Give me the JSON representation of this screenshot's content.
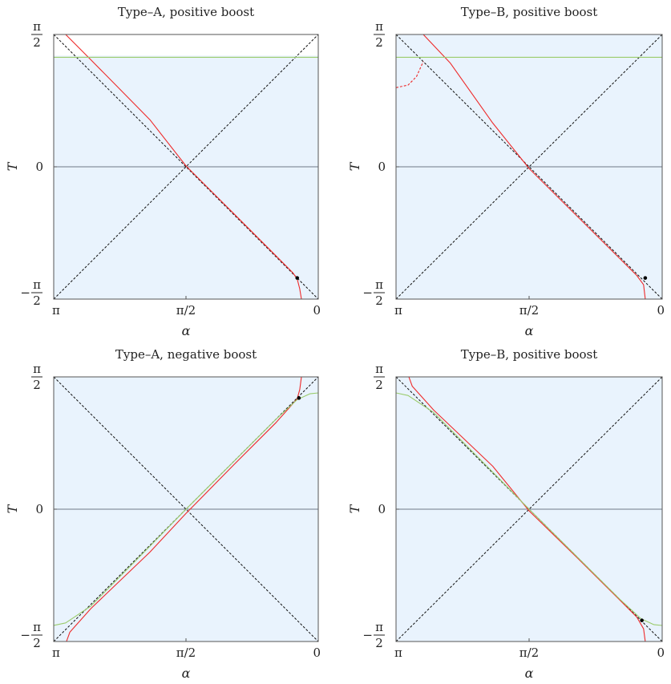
{
  "figure": {
    "colors": {
      "shade": "#e9f3fd",
      "frame": "#555555",
      "zero_line": "#6e7a88",
      "diagonal": "#111111",
      "red_curve": "#ee2a2a",
      "green_curve": "#9acb6a",
      "point": "#000000"
    }
  },
  "chart_data": [
    {
      "type": "line",
      "title": "Type–A, positive boost",
      "xlabel": "α",
      "ylabel": "T",
      "x_reversed": true,
      "xlim": [
        0,
        3.14159
      ],
      "ylim": [
        -1.5708,
        1.5708
      ],
      "x_ticks": [
        {
          "v": 3.14159,
          "label": "π"
        },
        {
          "v": 1.5708,
          "label": "π/2"
        },
        {
          "v": 0,
          "label": "0"
        }
      ],
      "y_ticks": [
        {
          "v": 1.5708,
          "num": "π",
          "den": "2",
          "sign": ""
        },
        {
          "v": 0,
          "label": "0"
        },
        {
          "v": -1.5708,
          "num": "π",
          "den": "2",
          "sign": "−"
        }
      ],
      "shade": {
        "ymin": -1.5708,
        "ymax": 1.32
      },
      "series": [
        {
          "kind": "red",
          "style": "solid",
          "points": [
            [
              3.0,
              1.5708
            ],
            [
              2.7,
              1.27
            ],
            [
              2.0,
              0.56
            ],
            [
              1.5708,
              0.01
            ],
            [
              1.0,
              -0.56
            ],
            [
              0.5,
              -1.06
            ],
            [
              0.3,
              -1.26
            ],
            [
              0.25,
              -1.33
            ],
            [
              0.22,
              -1.45
            ],
            [
              0.2,
              -1.5708
            ]
          ]
        },
        {
          "kind": "green",
          "style": "solid",
          "points": [
            [
              3.14159,
              1.3
            ],
            [
              0,
              1.3
            ]
          ]
        }
      ],
      "markers": [
        [
          0.25,
          -1.32
        ]
      ]
    },
    {
      "type": "line",
      "title": "Type–B, positive boost",
      "xlabel": "α",
      "ylabel": "T",
      "x_reversed": true,
      "xlim": [
        0,
        3.14159
      ],
      "ylim": [
        -1.5708,
        1.5708
      ],
      "x_ticks": [
        {
          "v": 3.14159,
          "label": "π"
        },
        {
          "v": 1.5708,
          "label": "π/2"
        },
        {
          "v": 0,
          "label": "0"
        }
      ],
      "y_ticks": [
        {
          "v": 1.5708,
          "num": "π",
          "den": "2",
          "sign": ""
        },
        {
          "v": 0,
          "label": "0"
        },
        {
          "v": -1.5708,
          "num": "π",
          "den": "2",
          "sign": "−"
        }
      ],
      "shade": {
        "ymin": -1.5708,
        "ymax": 1.5708
      },
      "series": [
        {
          "kind": "red",
          "style": "solid",
          "points": [
            [
              2.82,
              1.5708
            ],
            [
              2.5,
              1.23
            ],
            [
              2.0,
              0.52
            ],
            [
              1.5708,
              -0.02
            ],
            [
              1.0,
              -0.59
            ],
            [
              0.5,
              -1.09
            ],
            [
              0.3,
              -1.29
            ],
            [
              0.22,
              -1.4
            ],
            [
              0.2,
              -1.5708
            ]
          ]
        },
        {
          "kind": "red",
          "style": "dashed",
          "points": [
            [
              3.14159,
              0.94
            ],
            [
              3.0,
              0.97
            ],
            [
              2.9,
              1.07
            ],
            [
              2.82,
              1.25
            ]
          ]
        },
        {
          "kind": "green",
          "style": "solid",
          "points": [
            [
              3.14159,
              1.3
            ],
            [
              0,
              1.3
            ]
          ]
        }
      ],
      "markers": [
        [
          0.2,
          -1.32
        ]
      ]
    },
    {
      "type": "line",
      "title": "Type–A, negative boost",
      "xlabel": "α",
      "ylabel": "T",
      "x_reversed": true,
      "xlim": [
        0,
        3.14159
      ],
      "ylim": [
        -1.5708,
        1.5708
      ],
      "x_ticks": [
        {
          "v": 3.14159,
          "label": "π"
        },
        {
          "v": 1.5708,
          "label": "π/2"
        },
        {
          "v": 0,
          "label": "0"
        }
      ],
      "y_ticks": [
        {
          "v": 1.5708,
          "num": "π",
          "den": "2",
          "sign": ""
        },
        {
          "v": 0,
          "label": "0"
        },
        {
          "v": -1.5708,
          "num": "π",
          "den": "2",
          "sign": "−"
        }
      ],
      "shade": {
        "ymin": -1.5708,
        "ymax": 1.5708
      },
      "series": [
        {
          "kind": "red",
          "style": "solid",
          "points": [
            [
              2.99,
              -1.5708
            ],
            [
              2.95,
              -1.46
            ],
            [
              2.7,
              -1.18
            ],
            [
              2.0,
              -0.51
            ],
            [
              1.5708,
              -0.05
            ],
            [
              1.0,
              0.53
            ],
            [
              0.5,
              1.03
            ],
            [
              0.25,
              1.31
            ],
            [
              0.22,
              1.42
            ],
            [
              0.2,
              1.5708
            ]
          ]
        },
        {
          "kind": "green",
          "style": "solid",
          "points": [
            [
              3.14159,
              -1.38
            ],
            [
              3.0,
              -1.35
            ],
            [
              2.7,
              -1.15
            ],
            [
              2.0,
              -0.44
            ],
            [
              1.5708,
              0.0
            ],
            [
              1.0,
              0.57
            ],
            [
              0.5,
              1.07
            ],
            [
              0.25,
              1.3
            ],
            [
              0.1,
              1.37
            ],
            [
              0,
              1.38
            ]
          ]
        }
      ],
      "markers": [
        [
          0.23,
          1.32
        ]
      ]
    },
    {
      "type": "line",
      "title": "Type–B, positive boost",
      "xlabel": "α",
      "ylabel": "T",
      "x_reversed": true,
      "xlim": [
        0,
        3.14159
      ],
      "ylim": [
        -1.5708,
        1.5708
      ],
      "x_ticks": [
        {
          "v": 3.14159,
          "label": "π"
        },
        {
          "v": 1.5708,
          "label": "π/2"
        },
        {
          "v": 0,
          "label": "0"
        }
      ],
      "y_ticks": [
        {
          "v": 1.5708,
          "num": "π",
          "den": "2",
          "sign": ""
        },
        {
          "v": 0,
          "label": "0"
        },
        {
          "v": -1.5708,
          "num": "π",
          "den": "2",
          "sign": "−"
        }
      ],
      "shade": {
        "ymin": -1.5708,
        "ymax": 1.5708
      },
      "series": [
        {
          "kind": "red",
          "style": "solid",
          "points": [
            [
              2.99,
              1.5708
            ],
            [
              2.95,
              1.46
            ],
            [
              2.7,
              1.18
            ],
            [
              2.0,
              0.51
            ],
            [
              1.5708,
              -0.02
            ],
            [
              1.0,
              -0.58
            ],
            [
              0.5,
              -1.08
            ],
            [
              0.3,
              -1.28
            ],
            [
              0.22,
              -1.42
            ],
            [
              0.2,
              -1.5708
            ]
          ]
        },
        {
          "kind": "green",
          "style": "solid",
          "points": [
            [
              3.14159,
              1.38
            ],
            [
              3.0,
              1.35
            ],
            [
              2.7,
              1.15
            ],
            [
              2.0,
              0.44
            ],
            [
              1.5708,
              0.0
            ],
            [
              1.0,
              -0.57
            ],
            [
              0.5,
              -1.07
            ],
            [
              0.25,
              -1.3
            ],
            [
              0.1,
              -1.37
            ],
            [
              0,
              -1.38
            ]
          ]
        }
      ],
      "markers": [
        [
          0.24,
          -1.32
        ]
      ]
    }
  ]
}
